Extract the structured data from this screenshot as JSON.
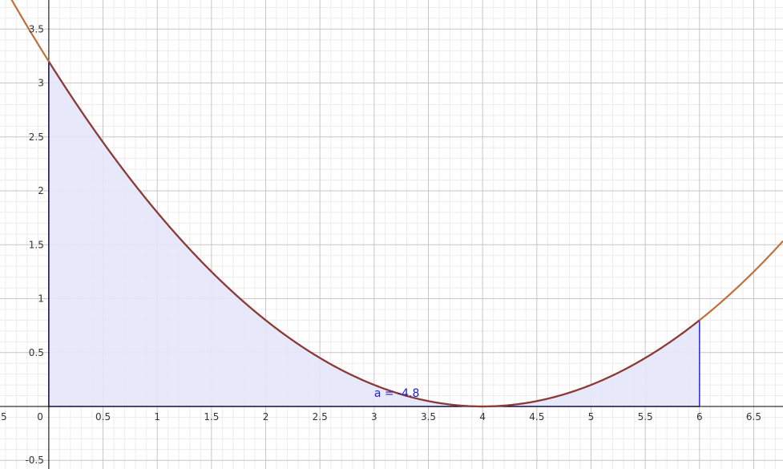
{
  "chart_data": {
    "type": "line",
    "title": "",
    "xlabel": "",
    "ylabel": "",
    "xlim": [
      -0.45,
      6.77
    ],
    "ylim": [
      -0.58,
      3.77
    ],
    "grid": true,
    "minor_grid": true,
    "x_ticks": [
      "0.5",
      "1",
      "1.5",
      "2",
      "2.5",
      "3",
      "3.5",
      "4",
      "4.5",
      "5",
      "5.5",
      "6",
      "6.5"
    ],
    "x_tick_values": [
      0.5,
      1,
      1.5,
      2,
      2.5,
      3,
      3.5,
      4,
      4.5,
      5,
      5.5,
      6,
      6.5
    ],
    "x_edge_tick": "5",
    "origin_label": "0",
    "y_ticks": [
      "-0.5",
      "0.5",
      "1",
      "1.5",
      "2",
      "2.5",
      "3",
      "3.5"
    ],
    "y_tick_values": [
      -0.5,
      0.5,
      1,
      1.5,
      2,
      2.5,
      3,
      3.5
    ],
    "series": [
      {
        "function": "0.2 * (x - 4)^2",
        "x": [
          -0.45,
          0,
          0.5,
          1,
          1.5,
          2,
          2.5,
          3,
          3.5,
          4,
          4.5,
          5,
          5.5,
          6,
          6.5,
          6.77
        ],
        "y": [
          3.96,
          3.2,
          2.45,
          1.8,
          1.25,
          0.8,
          0.45,
          0.2,
          0.05,
          0,
          0.05,
          0.2,
          0.45,
          0.8,
          1.25,
          1.53
        ],
        "color": "#c0703a",
        "interval_color": "#8b3a3a"
      }
    ],
    "shaded_region": {
      "x_from": 0,
      "x_to": 6,
      "fill": "#e6e6fb",
      "edge": "#2a2acc"
    },
    "annotation": {
      "text": "a = -4.8",
      "x": 3.0,
      "y": 0.09
    },
    "colors": {
      "major_grid": "#c6c6c6",
      "minor_grid": "#ececec",
      "axis": "#000000"
    }
  }
}
